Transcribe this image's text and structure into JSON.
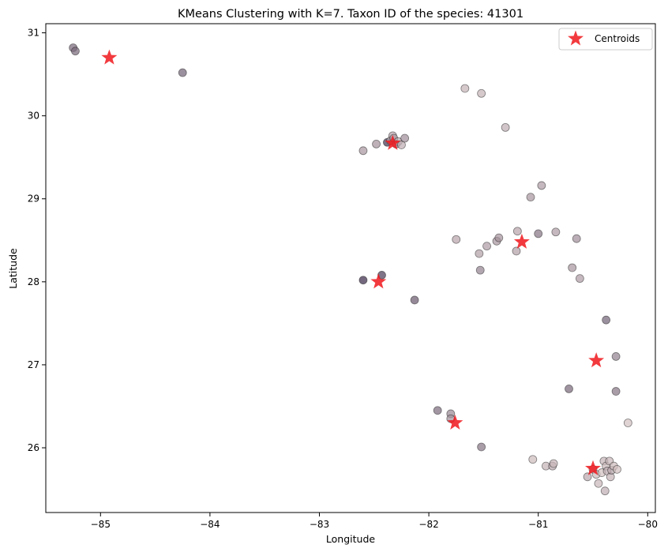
{
  "chart_data": {
    "type": "scatter",
    "title": "KMeans Clustering with K=7. Taxon ID of the species: 41301",
    "xlabel": "Longitude",
    "ylabel": "Latitude",
    "xlim": [
      -85.5,
      -79.93
    ],
    "ylim": [
      25.22,
      31.11
    ],
    "xticks": [
      -85,
      -84,
      -83,
      -82,
      -81,
      -80
    ],
    "yticks": [
      26,
      27,
      28,
      29,
      30,
      31
    ],
    "grid": false,
    "legend": {
      "placement": "top-right",
      "entries": [
        "Centroids"
      ]
    },
    "colors": {
      "centroid": "#f0181c",
      "point_light": "#f0dcd8",
      "point_dark": "#2d1e3e",
      "point_edge": "#222222"
    },
    "series": [
      {
        "kind": "points",
        "shade_scale": "value 0 = lightest pink, value 1 = darkest purple",
        "points": [
          {
            "x": -85.25,
            "y": 30.82,
            "v": 0.62
          },
          {
            "x": -85.23,
            "y": 30.78,
            "v": 0.62
          },
          {
            "x": -84.25,
            "y": 30.52,
            "v": 0.65
          },
          {
            "x": -81.67,
            "y": 30.33,
            "v": 0.22
          },
          {
            "x": -81.52,
            "y": 30.27,
            "v": 0.22
          },
          {
            "x": -81.3,
            "y": 29.86,
            "v": 0.25
          },
          {
            "x": -82.6,
            "y": 29.58,
            "v": 0.38
          },
          {
            "x": -82.48,
            "y": 29.66,
            "v": 0.4
          },
          {
            "x": -82.38,
            "y": 29.68,
            "v": 0.9
          },
          {
            "x": -82.35,
            "y": 29.7,
            "v": 0.32
          },
          {
            "x": -82.33,
            "y": 29.76,
            "v": 0.3
          },
          {
            "x": -82.32,
            "y": 29.73,
            "v": 0.35
          },
          {
            "x": -82.3,
            "y": 29.66,
            "v": 0.45
          },
          {
            "x": -82.28,
            "y": 29.69,
            "v": 0.28
          },
          {
            "x": -82.25,
            "y": 29.65,
            "v": 0.25
          },
          {
            "x": -82.22,
            "y": 29.73,
            "v": 0.42
          },
          {
            "x": -80.97,
            "y": 29.16,
            "v": 0.35
          },
          {
            "x": -81.07,
            "y": 29.02,
            "v": 0.38
          },
          {
            "x": -81.75,
            "y": 28.51,
            "v": 0.3
          },
          {
            "x": -81.54,
            "y": 28.34,
            "v": 0.32
          },
          {
            "x": -81.47,
            "y": 28.43,
            "v": 0.35
          },
          {
            "x": -81.38,
            "y": 28.49,
            "v": 0.38
          },
          {
            "x": -81.36,
            "y": 28.53,
            "v": 0.4
          },
          {
            "x": -81.2,
            "y": 28.37,
            "v": 0.32
          },
          {
            "x": -81.19,
            "y": 28.61,
            "v": 0.3
          },
          {
            "x": -81.0,
            "y": 28.58,
            "v": 0.55
          },
          {
            "x": -80.84,
            "y": 28.6,
            "v": 0.35
          },
          {
            "x": -80.65,
            "y": 28.52,
            "v": 0.42
          },
          {
            "x": -81.53,
            "y": 28.14,
            "v": 0.48
          },
          {
            "x": -80.69,
            "y": 28.17,
            "v": 0.38
          },
          {
            "x": -80.62,
            "y": 28.04,
            "v": 0.35
          },
          {
            "x": -82.6,
            "y": 28.02,
            "v": 0.95
          },
          {
            "x": -82.43,
            "y": 28.08,
            "v": 0.85
          },
          {
            "x": -82.13,
            "y": 27.78,
            "v": 0.7
          },
          {
            "x": -80.38,
            "y": 27.54,
            "v": 0.65
          },
          {
            "x": -80.29,
            "y": 27.1,
            "v": 0.48
          },
          {
            "x": -80.72,
            "y": 26.71,
            "v": 0.62
          },
          {
            "x": -80.29,
            "y": 26.68,
            "v": 0.55
          },
          {
            "x": -80.18,
            "y": 26.3,
            "v": 0.15
          },
          {
            "x": -81.92,
            "y": 26.45,
            "v": 0.6
          },
          {
            "x": -81.8,
            "y": 26.41,
            "v": 0.45
          },
          {
            "x": -81.8,
            "y": 26.35,
            "v": 0.4
          },
          {
            "x": -81.52,
            "y": 26.01,
            "v": 0.55
          },
          {
            "x": -81.05,
            "y": 25.86,
            "v": 0.18
          },
          {
            "x": -80.93,
            "y": 25.78,
            "v": 0.22
          },
          {
            "x": -80.87,
            "y": 25.78,
            "v": 0.28
          },
          {
            "x": -80.86,
            "y": 25.81,
            "v": 0.2
          },
          {
            "x": -80.55,
            "y": 25.65,
            "v": 0.28
          },
          {
            "x": -80.5,
            "y": 25.74,
            "v": 0.22
          },
          {
            "x": -80.47,
            "y": 25.68,
            "v": 0.18
          },
          {
            "x": -80.45,
            "y": 25.57,
            "v": 0.2
          },
          {
            "x": -80.42,
            "y": 25.7,
            "v": 0.15
          },
          {
            "x": -80.4,
            "y": 25.84,
            "v": 0.22
          },
          {
            "x": -80.38,
            "y": 25.78,
            "v": 0.18
          },
          {
            "x": -80.37,
            "y": 25.72,
            "v": 0.25
          },
          {
            "x": -80.35,
            "y": 25.84,
            "v": 0.2
          },
          {
            "x": -80.34,
            "y": 25.65,
            "v": 0.22
          },
          {
            "x": -80.33,
            "y": 25.73,
            "v": 0.28
          },
          {
            "x": -80.31,
            "y": 25.78,
            "v": 0.18
          },
          {
            "x": -80.28,
            "y": 25.74,
            "v": 0.15
          },
          {
            "x": -80.39,
            "y": 25.48,
            "v": 0.25
          }
        ]
      },
      {
        "name": "Centroids",
        "kind": "centroids",
        "points": [
          {
            "x": -84.92,
            "y": 30.7
          },
          {
            "x": -82.33,
            "y": 29.67
          },
          {
            "x": -81.15,
            "y": 28.48
          },
          {
            "x": -82.46,
            "y": 28.0
          },
          {
            "x": -80.47,
            "y": 27.05
          },
          {
            "x": -81.76,
            "y": 26.3
          },
          {
            "x": -80.5,
            "y": 25.75
          }
        ]
      }
    ]
  }
}
